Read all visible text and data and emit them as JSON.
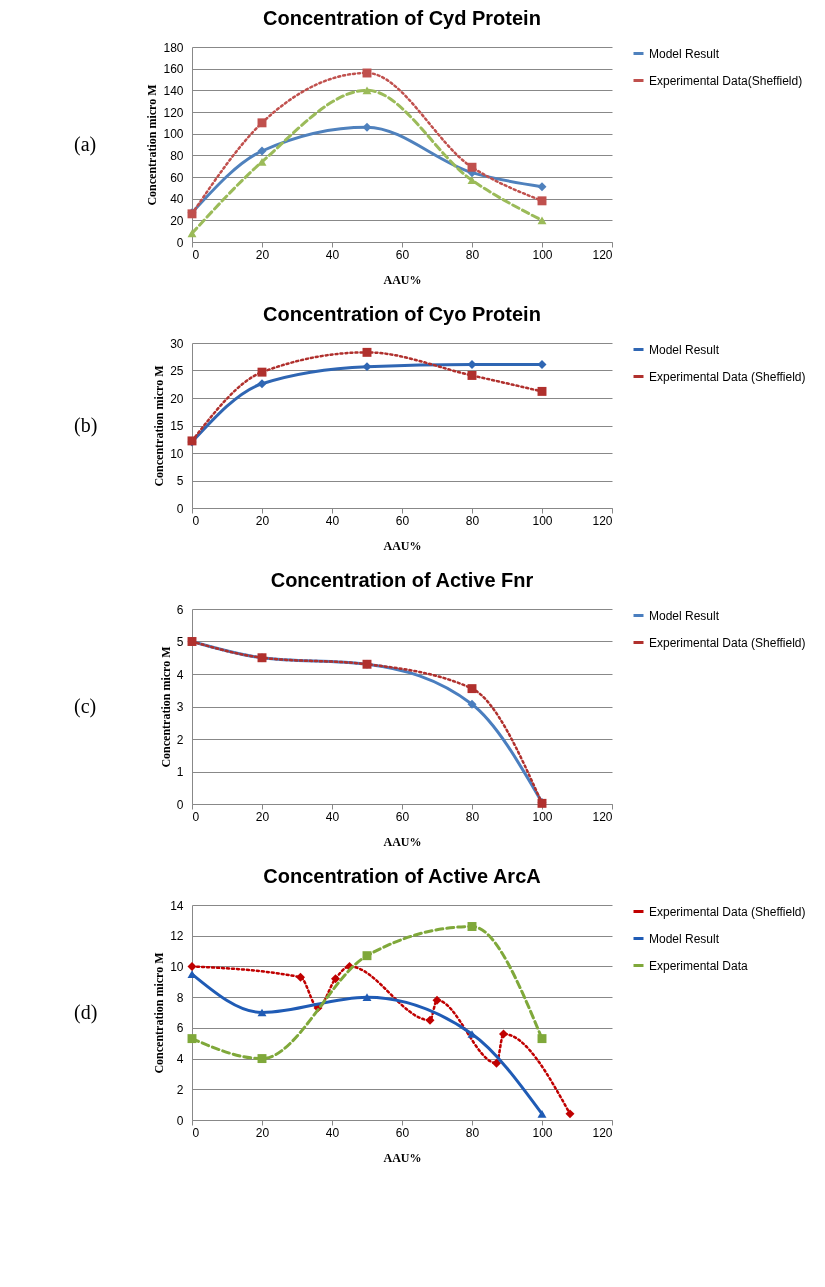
{
  "chart_data": [
    {
      "type": "line",
      "title": "Concentration of Cyd Protein",
      "xlabel": "AAU%",
      "ylabel": "Concentration micro M",
      "annotations": [
        "(a)"
      ],
      "x": [
        0,
        20,
        50,
        80,
        100
      ],
      "xlim": [
        0,
        120
      ],
      "xticks": [
        0,
        20,
        40,
        60,
        80,
        100,
        120
      ],
      "ylim": [
        0,
        180
      ],
      "yticks": [
        0,
        20,
        40,
        60,
        80,
        100,
        120,
        140,
        160,
        180
      ],
      "grid": "y",
      "legend": "right",
      "series": [
        {
          "name": "Model Result",
          "color": "#4f81bd",
          "marker": "diamond",
          "line_style": "solid",
          "values": [
            27,
            84,
            106,
            64,
            51
          ]
        },
        {
          "name": "Experimental Data(Sheffield)",
          "color": "#c0504d",
          "marker": "square",
          "line_style": "dotted",
          "values": [
            26,
            110,
            156,
            69,
            38
          ]
        },
        {
          "color": "#9bbb59",
          "marker": "triangle",
          "line_style": "dashed",
          "values": [
            8,
            74,
            140,
            57,
            20
          ]
        }
      ]
    },
    {
      "type": "line",
      "title": "Concentration of Cyo Protein",
      "xlabel": "AAU%",
      "ylabel": "Concentration micro M",
      "annotations": [
        "(b)"
      ],
      "x": [
        0,
        20,
        50,
        80,
        100
      ],
      "xlim": [
        0,
        120
      ],
      "xticks": [
        0,
        20,
        40,
        60,
        80,
        100,
        120
      ],
      "ylim": [
        0,
        30
      ],
      "yticks": [
        0,
        5,
        10,
        15,
        20,
        25,
        30
      ],
      "grid": "y",
      "legend": "right",
      "series": [
        {
          "name": "Model Result",
          "color": "#2f66b3",
          "marker": "diamond",
          "line_style": "solid",
          "values": [
            12,
            22.6,
            25.7,
            26.1,
            26.1
          ]
        },
        {
          "name": "Experimental Data (Sheffield)",
          "color": "#b0302d",
          "marker": "square",
          "line_style": "dotted",
          "values": [
            12.2,
            24.7,
            28.3,
            24.1,
            21.2
          ]
        }
      ]
    },
    {
      "type": "line",
      "title": "Concentration of Active Fnr",
      "xlabel": "AAU%",
      "ylabel": "Concentration micro M",
      "annotations": [
        "(c)"
      ],
      "x": [
        0,
        20,
        50,
        80,
        100
      ],
      "xlim": [
        0,
        120
      ],
      "xticks": [
        0,
        20,
        40,
        60,
        80,
        100,
        120
      ],
      "ylim": [
        0,
        6
      ],
      "yticks": [
        0,
        1,
        2,
        3,
        4,
        5,
        6
      ],
      "grid": "y",
      "legend": "right",
      "series": [
        {
          "name": "Model Result",
          "color": "#4a7ebf",
          "marker": "diamond",
          "line_style": "solid",
          "values": [
            5,
            4.5,
            4.3,
            3.07,
            0.05
          ]
        },
        {
          "name": "Experimental Data (Sheffield)",
          "color": "#b0302d",
          "marker": "square",
          "line_style": "dotted",
          "values": [
            5,
            4.5,
            4.3,
            3.55,
            0.02
          ]
        }
      ]
    },
    {
      "type": "line",
      "title": "Concentration of Active ArcA",
      "xlabel": "AAU%",
      "ylabel": "Concentration micro M",
      "annotations": [
        "(d)"
      ],
      "x": [
        0,
        20,
        50,
        80,
        100
      ],
      "xlim": [
        0,
        120
      ],
      "xticks": [
        0,
        20,
        40,
        60,
        80,
        100,
        120
      ],
      "ylim": [
        0,
        14
      ],
      "yticks": [
        0,
        2,
        4,
        6,
        8,
        10,
        12,
        14
      ],
      "grid": "y",
      "legend": "right",
      "series": [
        {
          "name": "Experimental Data (Sheffield)",
          "color": "#c00000",
          "marker": "diamond",
          "line_style": "dotted",
          "x": [
            0,
            31,
            36,
            41,
            45,
            68,
            70,
            87,
            89,
            108
          ],
          "values": [
            10,
            9.3,
            7.3,
            9.2,
            10,
            6.5,
            7.8,
            3.7,
            5.6,
            0.4
          ]
        },
        {
          "name": "Model Result",
          "color": "#1f5bb5",
          "marker": "triangle",
          "line_style": "solid",
          "values": [
            9.5,
            7,
            8,
            5.6,
            0.4
          ]
        },
        {
          "name": "Experimental Data",
          "color": "#7fa83a",
          "marker": "square",
          "line_style": "dashed",
          "values": [
            5.3,
            4.0,
            10.7,
            12.6,
            5.3
          ]
        }
      ]
    }
  ]
}
